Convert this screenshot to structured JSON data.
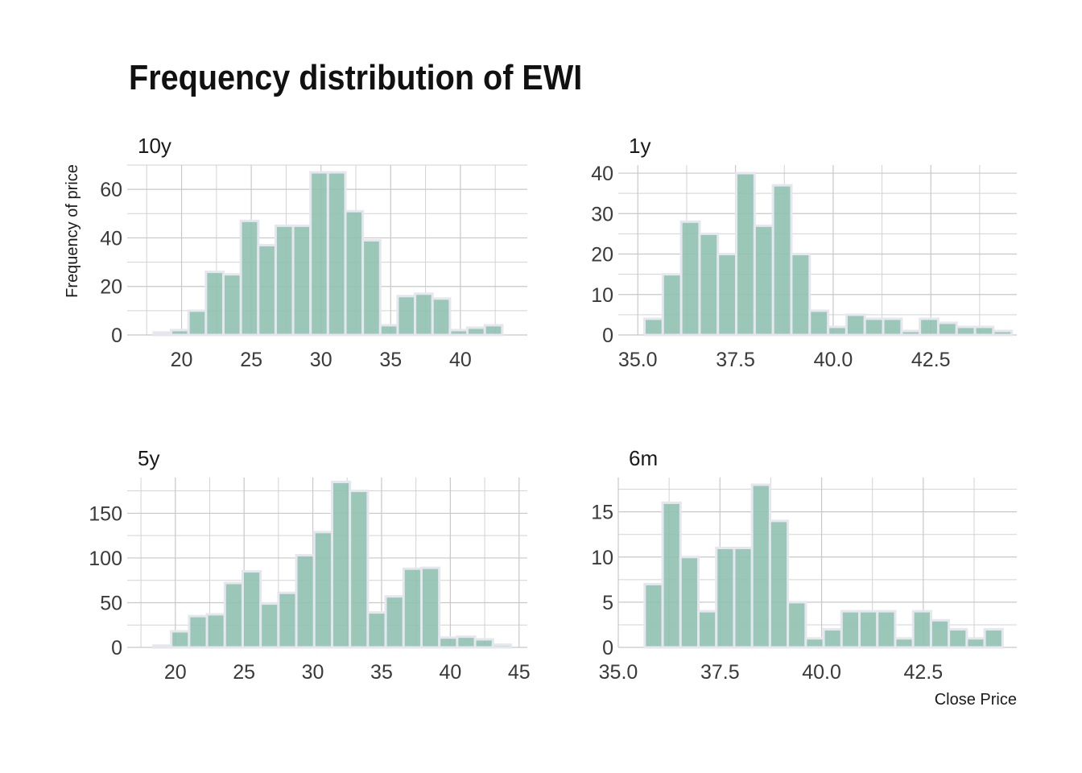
{
  "chart_data": {
    "type": "bar",
    "title": "Frequency distribution of EWI",
    "ylabel": "Frequency of price",
    "xlabel": "Close Price",
    "grid": true,
    "bar_color": "#8fc1b0",
    "bar_edge_color": "#e6e6ee",
    "grid_color": "#d3d3d3",
    "panels": [
      {
        "label": "10y",
        "xlim": [
          16.1,
          44.8
        ],
        "ylim": [
          0,
          70
        ],
        "xticks": [
          20,
          25,
          30,
          35,
          40
        ],
        "xtick_labels": [
          "20",
          "25",
          "30",
          "35",
          "40"
        ],
        "yticks": [
          0,
          20,
          40,
          60
        ],
        "bin_width": 1.25,
        "bins": [
          {
            "x": 18.0,
            "count": 1
          },
          {
            "x": 19.25,
            "count": 2
          },
          {
            "x": 20.5,
            "count": 10
          },
          {
            "x": 21.75,
            "count": 26
          },
          {
            "x": 23.0,
            "count": 25
          },
          {
            "x": 24.25,
            "count": 47
          },
          {
            "x": 25.5,
            "count": 37
          },
          {
            "x": 26.75,
            "count": 45
          },
          {
            "x": 28.0,
            "count": 45
          },
          {
            "x": 29.25,
            "count": 67
          },
          {
            "x": 30.5,
            "count": 67
          },
          {
            "x": 31.75,
            "count": 51
          },
          {
            "x": 33.0,
            "count": 39
          },
          {
            "x": 34.25,
            "count": 4
          },
          {
            "x": 35.5,
            "count": 16
          },
          {
            "x": 36.75,
            "count": 17
          },
          {
            "x": 38.0,
            "count": 15
          },
          {
            "x": 39.25,
            "count": 2
          },
          {
            "x": 40.5,
            "count": 3
          },
          {
            "x": 41.75,
            "count": 4
          }
        ]
      },
      {
        "label": "1y",
        "xlim": [
          34.5,
          44.7
        ],
        "ylim": [
          0,
          42
        ],
        "xticks": [
          35.0,
          37.5,
          40.0,
          42.5
        ],
        "xtick_labels": [
          "35.0",
          "37.5",
          "40.0",
          "42.5"
        ],
        "yticks": [
          0,
          10,
          20,
          30,
          40
        ],
        "bin_width": 0.47,
        "bins": [
          {
            "x": 35.17,
            "count": 4
          },
          {
            "x": 35.64,
            "count": 15
          },
          {
            "x": 36.11,
            "count": 28
          },
          {
            "x": 36.58,
            "count": 25
          },
          {
            "x": 37.05,
            "count": 20
          },
          {
            "x": 37.52,
            "count": 40
          },
          {
            "x": 37.99,
            "count": 27
          },
          {
            "x": 38.46,
            "count": 37
          },
          {
            "x": 38.93,
            "count": 20
          },
          {
            "x": 39.4,
            "count": 6
          },
          {
            "x": 39.87,
            "count": 2
          },
          {
            "x": 40.34,
            "count": 5
          },
          {
            "x": 40.81,
            "count": 4
          },
          {
            "x": 41.28,
            "count": 4
          },
          {
            "x": 41.75,
            "count": 1
          },
          {
            "x": 42.22,
            "count": 4
          },
          {
            "x": 42.69,
            "count": 3
          },
          {
            "x": 43.16,
            "count": 2
          },
          {
            "x": 43.63,
            "count": 2
          },
          {
            "x": 44.1,
            "count": 1
          }
        ]
      },
      {
        "label": "5y",
        "xlim": [
          16.5,
          45.6
        ],
        "ylim": [
          0,
          190
        ],
        "xticks": [
          20,
          25,
          30,
          35,
          40,
          45
        ],
        "xtick_labels": [
          "20",
          "25",
          "30",
          "35",
          "40",
          "45"
        ],
        "yticks": [
          0,
          50,
          100,
          150
        ],
        "bin_width": 1.3,
        "bins": [
          {
            "x": 18.4,
            "count": 2
          },
          {
            "x": 19.7,
            "count": 18
          },
          {
            "x": 21.0,
            "count": 35
          },
          {
            "x": 22.3,
            "count": 37
          },
          {
            "x": 23.6,
            "count": 72
          },
          {
            "x": 24.9,
            "count": 85
          },
          {
            "x": 26.2,
            "count": 49
          },
          {
            "x": 27.5,
            "count": 61
          },
          {
            "x": 28.8,
            "count": 103
          },
          {
            "x": 30.1,
            "count": 129
          },
          {
            "x": 31.4,
            "count": 185
          },
          {
            "x": 32.7,
            "count": 175
          },
          {
            "x": 34.0,
            "count": 39
          },
          {
            "x": 35.3,
            "count": 57
          },
          {
            "x": 36.6,
            "count": 88
          },
          {
            "x": 37.9,
            "count": 89
          },
          {
            "x": 39.2,
            "count": 11
          },
          {
            "x": 40.5,
            "count": 12
          },
          {
            "x": 41.8,
            "count": 9
          },
          {
            "x": 43.1,
            "count": 3
          }
        ]
      },
      {
        "label": "6m",
        "xlim": [
          35.0,
          44.8
        ],
        "ylim": [
          0,
          18.8
        ],
        "xticks": [
          35.0,
          37.5,
          40.0,
          42.5
        ],
        "xtick_labels": [
          "35.0",
          "37.5",
          "40.0",
          "42.5"
        ],
        "yticks": [
          0,
          5,
          10,
          15
        ],
        "bin_width": 0.44,
        "bins": [
          {
            "x": 35.65,
            "count": 7
          },
          {
            "x": 36.09,
            "count": 16
          },
          {
            "x": 36.53,
            "count": 10
          },
          {
            "x": 36.97,
            "count": 4
          },
          {
            "x": 37.41,
            "count": 11
          },
          {
            "x": 37.85,
            "count": 11
          },
          {
            "x": 38.29,
            "count": 18
          },
          {
            "x": 38.73,
            "count": 14
          },
          {
            "x": 39.17,
            "count": 5
          },
          {
            "x": 39.61,
            "count": 1
          },
          {
            "x": 40.05,
            "count": 2
          },
          {
            "x": 40.49,
            "count": 4
          },
          {
            "x": 40.93,
            "count": 4
          },
          {
            "x": 41.37,
            "count": 4
          },
          {
            "x": 41.81,
            "count": 1
          },
          {
            "x": 42.25,
            "count": 4
          },
          {
            "x": 42.69,
            "count": 3
          },
          {
            "x": 43.13,
            "count": 2
          },
          {
            "x": 43.57,
            "count": 1
          },
          {
            "x": 44.01,
            "count": 2
          }
        ]
      }
    ]
  }
}
